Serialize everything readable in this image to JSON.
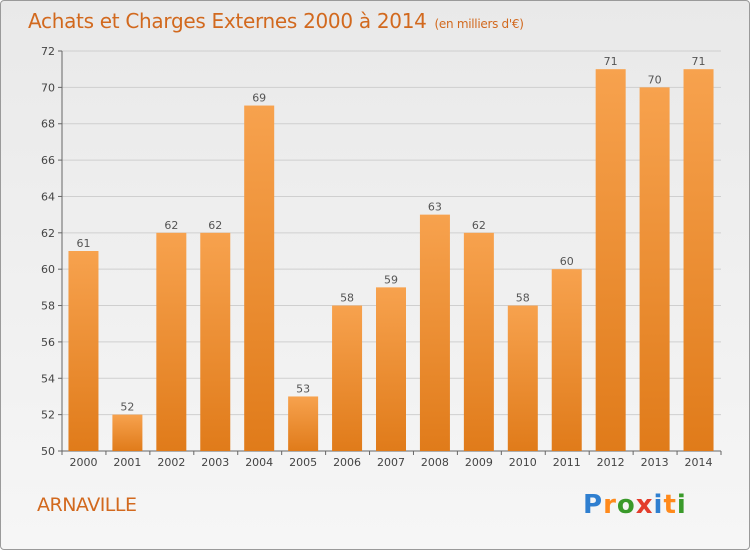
{
  "title": "Achats et Charges Externes 2000 à 2014",
  "subtitle": "(en milliers d'€)",
  "commune": "ARNAVILLE",
  "logo": [
    "P",
    "r",
    "o",
    "x",
    "i",
    "t",
    "i"
  ],
  "colors": {
    "bar_light": "#f7a24e",
    "bar_dark": "#e07b1a",
    "title": "#d2691e",
    "grid": "#cfcfcf"
  },
  "chart_data": {
    "type": "bar",
    "categories": [
      "2000",
      "2001",
      "2002",
      "2003",
      "2004",
      "2005",
      "2006",
      "2007",
      "2008",
      "2009",
      "2010",
      "2011",
      "2012",
      "2013",
      "2014"
    ],
    "values": [
      61,
      52,
      62,
      62,
      69,
      53,
      58,
      59,
      63,
      62,
      58,
      60,
      71,
      70,
      71
    ],
    "ylim": [
      50,
      72
    ],
    "yticks": [
      50,
      52,
      54,
      56,
      58,
      60,
      62,
      64,
      66,
      68,
      70,
      72
    ],
    "grid": true
  }
}
